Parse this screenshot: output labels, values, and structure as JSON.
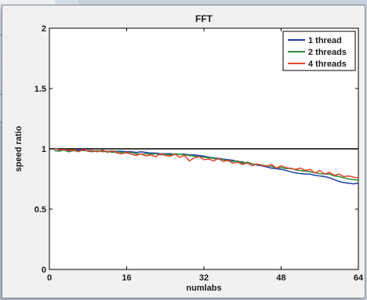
{
  "chart_data": {
    "type": "line",
    "title": "FFT",
    "xlabel": "numlabs",
    "ylabel": "speed ratio",
    "xlim": [
      0,
      64
    ],
    "ylim": [
      0,
      2
    ],
    "xticks": [
      0,
      16,
      32,
      48,
      64
    ],
    "yticks": [
      0,
      0.5,
      1,
      1.5,
      2
    ],
    "ytick_labels": [
      "0",
      "0.5",
      "1",
      "1.5",
      "2"
    ],
    "grid": false,
    "legend_position": "top-right",
    "reference_line": {
      "y": 1,
      "color": "#000000"
    },
    "x": [
      1,
      2,
      3,
      4,
      5,
      6,
      7,
      8,
      9,
      10,
      11,
      12,
      13,
      14,
      15,
      16,
      17,
      18,
      19,
      20,
      21,
      22,
      23,
      24,
      25,
      26,
      27,
      28,
      29,
      30,
      31,
      32,
      33,
      34,
      35,
      36,
      37,
      38,
      39,
      40,
      41,
      42,
      43,
      44,
      45,
      46,
      47,
      48,
      49,
      50,
      51,
      52,
      53,
      54,
      55,
      56,
      57,
      58,
      59,
      60,
      61,
      62,
      63,
      64
    ],
    "series": [
      {
        "name": "1 thread",
        "color": "#1f3fae",
        "values": [
          1.0,
          0.995,
          0.99,
          0.99,
          0.985,
          0.99,
          0.985,
          0.985,
          0.985,
          0.98,
          0.985,
          0.98,
          0.98,
          0.98,
          0.98,
          0.975,
          0.975,
          0.97,
          0.975,
          0.97,
          0.965,
          0.965,
          0.96,
          0.96,
          0.96,
          0.955,
          0.955,
          0.955,
          0.95,
          0.95,
          0.945,
          0.94,
          0.93,
          0.925,
          0.92,
          0.915,
          0.91,
          0.905,
          0.895,
          0.89,
          0.88,
          0.875,
          0.865,
          0.86,
          0.85,
          0.84,
          0.835,
          0.83,
          0.82,
          0.81,
          0.8,
          0.795,
          0.79,
          0.79,
          0.78,
          0.775,
          0.77,
          0.76,
          0.745,
          0.73,
          0.72,
          0.715,
          0.71,
          0.715
        ]
      },
      {
        "name": "2 threads",
        "color": "#2e8b3a",
        "values": [
          0.985,
          0.98,
          0.99,
          0.975,
          0.985,
          0.98,
          0.99,
          0.98,
          0.975,
          0.985,
          0.975,
          0.98,
          0.97,
          0.975,
          0.97,
          0.965,
          0.97,
          0.96,
          0.955,
          0.96,
          0.955,
          0.96,
          0.95,
          0.955,
          0.95,
          0.96,
          0.955,
          0.95,
          0.945,
          0.94,
          0.935,
          0.93,
          0.925,
          0.92,
          0.915,
          0.91,
          0.9,
          0.895,
          0.9,
          0.88,
          0.89,
          0.875,
          0.87,
          0.865,
          0.86,
          0.855,
          0.84,
          0.845,
          0.835,
          0.84,
          0.825,
          0.82,
          0.815,
          0.81,
          0.8,
          0.795,
          0.79,
          0.79,
          0.775,
          0.77,
          0.76,
          0.75,
          0.745,
          0.74
        ]
      },
      {
        "name": "4 threads",
        "color": "#e0452b",
        "values": [
          1.005,
          0.99,
          0.995,
          0.985,
          0.99,
          0.975,
          0.995,
          0.98,
          0.985,
          0.975,
          0.99,
          0.97,
          0.985,
          0.965,
          0.96,
          0.97,
          0.955,
          0.945,
          0.96,
          0.94,
          0.95,
          0.935,
          0.96,
          0.945,
          0.94,
          0.955,
          0.93,
          0.945,
          0.9,
          0.925,
          0.935,
          0.91,
          0.915,
          0.9,
          0.92,
          0.895,
          0.905,
          0.88,
          0.89,
          0.87,
          0.885,
          0.86,
          0.875,
          0.865,
          0.855,
          0.87,
          0.84,
          0.86,
          0.845,
          0.835,
          0.83,
          0.84,
          0.82,
          0.83,
          0.8,
          0.82,
          0.79,
          0.805,
          0.78,
          0.79,
          0.77,
          0.775,
          0.765,
          0.76
        ]
      }
    ]
  }
}
